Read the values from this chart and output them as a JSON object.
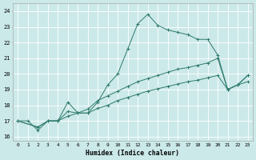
{
  "xlabel": "Humidex (Indice chaleur)",
  "bg_color": "#cce9e9",
  "grid_color": "#ffffff",
  "line_color": "#2d7a6a",
  "series1_x": [
    0,
    1,
    2,
    3,
    4,
    5,
    6,
    7,
    8,
    9,
    10,
    11,
    12,
    13,
    14,
    15,
    16,
    17,
    18,
    19,
    20,
    21,
    22,
    23
  ],
  "series1_y": [
    17.0,
    17.0,
    16.4,
    17.0,
    17.0,
    18.2,
    17.5,
    17.5,
    18.2,
    19.3,
    20.0,
    21.6,
    23.2,
    23.8,
    23.1,
    22.8,
    22.65,
    22.5,
    22.2,
    22.2,
    21.2,
    19.0,
    19.3,
    19.9
  ],
  "series2_x": [
    0,
    2,
    3,
    4,
    5,
    6,
    7,
    8,
    9,
    10,
    11,
    12,
    13,
    14,
    15,
    16,
    17,
    18,
    19,
    20,
    21,
    22,
    23
  ],
  "series2_y": [
    17.0,
    16.6,
    17.0,
    17.0,
    17.6,
    17.5,
    17.75,
    18.3,
    18.6,
    18.9,
    19.2,
    19.5,
    19.7,
    19.9,
    20.1,
    20.3,
    20.4,
    20.55,
    20.7,
    21.0,
    19.0,
    19.3,
    19.9
  ],
  "series3_x": [
    0,
    2,
    3,
    4,
    5,
    6,
    7,
    8,
    9,
    10,
    11,
    12,
    13,
    14,
    15,
    16,
    17,
    18,
    19,
    20,
    21,
    22,
    23
  ],
  "series3_y": [
    17.0,
    16.6,
    17.0,
    17.0,
    17.3,
    17.5,
    17.5,
    17.8,
    18.0,
    18.3,
    18.5,
    18.7,
    18.9,
    19.05,
    19.2,
    19.35,
    19.5,
    19.6,
    19.75,
    19.9,
    19.0,
    19.3,
    19.5
  ],
  "xlim": [
    -0.5,
    23.5
  ],
  "ylim": [
    15.75,
    24.5
  ],
  "xticks": [
    0,
    1,
    2,
    3,
    4,
    5,
    6,
    7,
    8,
    9,
    10,
    11,
    12,
    13,
    14,
    15,
    16,
    17,
    18,
    19,
    20,
    21,
    22,
    23
  ],
  "yticks": [
    16,
    17,
    18,
    19,
    20,
    21,
    22,
    23,
    24
  ]
}
